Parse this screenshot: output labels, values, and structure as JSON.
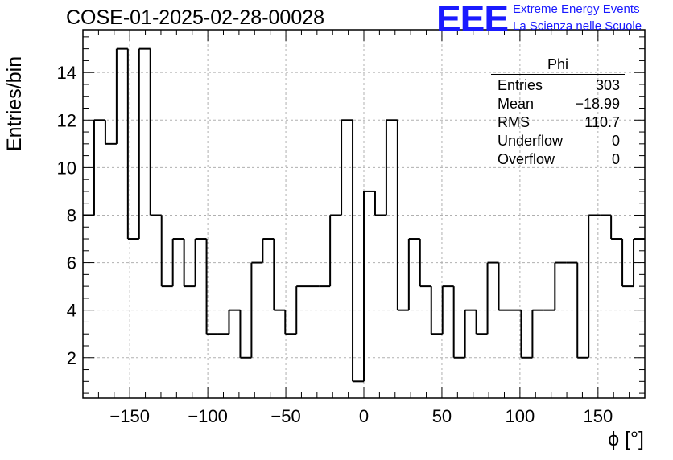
{
  "title": "COSE-01-2025-02-28-00028",
  "logo": {
    "mark": "EEE",
    "line1": "Extreme Energy Events",
    "line2": "La Scienza nelle Scuole",
    "color": "#1a1aff"
  },
  "stats": {
    "name": "Phi",
    "rows": [
      {
        "label": "Entries",
        "value": "303"
      },
      {
        "label": "Mean",
        "value": "−18.99"
      },
      {
        "label": "RMS",
        "value": "110.7"
      },
      {
        "label": "Underflow",
        "value": "0"
      },
      {
        "label": "Overflow",
        "value": "0"
      }
    ]
  },
  "chart_data": {
    "type": "bar",
    "histogram": true,
    "xlabel": "ϕ [°]",
    "ylabel": "Entries/bin",
    "xlim": [
      -180,
      180
    ],
    "ylim": [
      0.3,
      15.8
    ],
    "bin_width": 7.2,
    "x_ticks": [
      -150,
      -100,
      -50,
      0,
      50,
      100,
      150
    ],
    "x_tick_labels": [
      "−150",
      "−100",
      "−50",
      "0",
      "50",
      "100",
      "150"
    ],
    "y_ticks": [
      2,
      4,
      6,
      8,
      10,
      12,
      14
    ],
    "y_tick_labels": [
      "2",
      "4",
      "6",
      "8",
      "10",
      "12",
      "14"
    ],
    "grid": true,
    "values": [
      8,
      12,
      11,
      15,
      7,
      15,
      8,
      5,
      7,
      5,
      7,
      3,
      3,
      4,
      2,
      6,
      7,
      4,
      3,
      5,
      5,
      5,
      8,
      12,
      1,
      9,
      8,
      12,
      4,
      7,
      5,
      3,
      5,
      2,
      4,
      3,
      6,
      4,
      4,
      2,
      4,
      4,
      6,
      6,
      2,
      8,
      8,
      7,
      5,
      7
    ]
  }
}
